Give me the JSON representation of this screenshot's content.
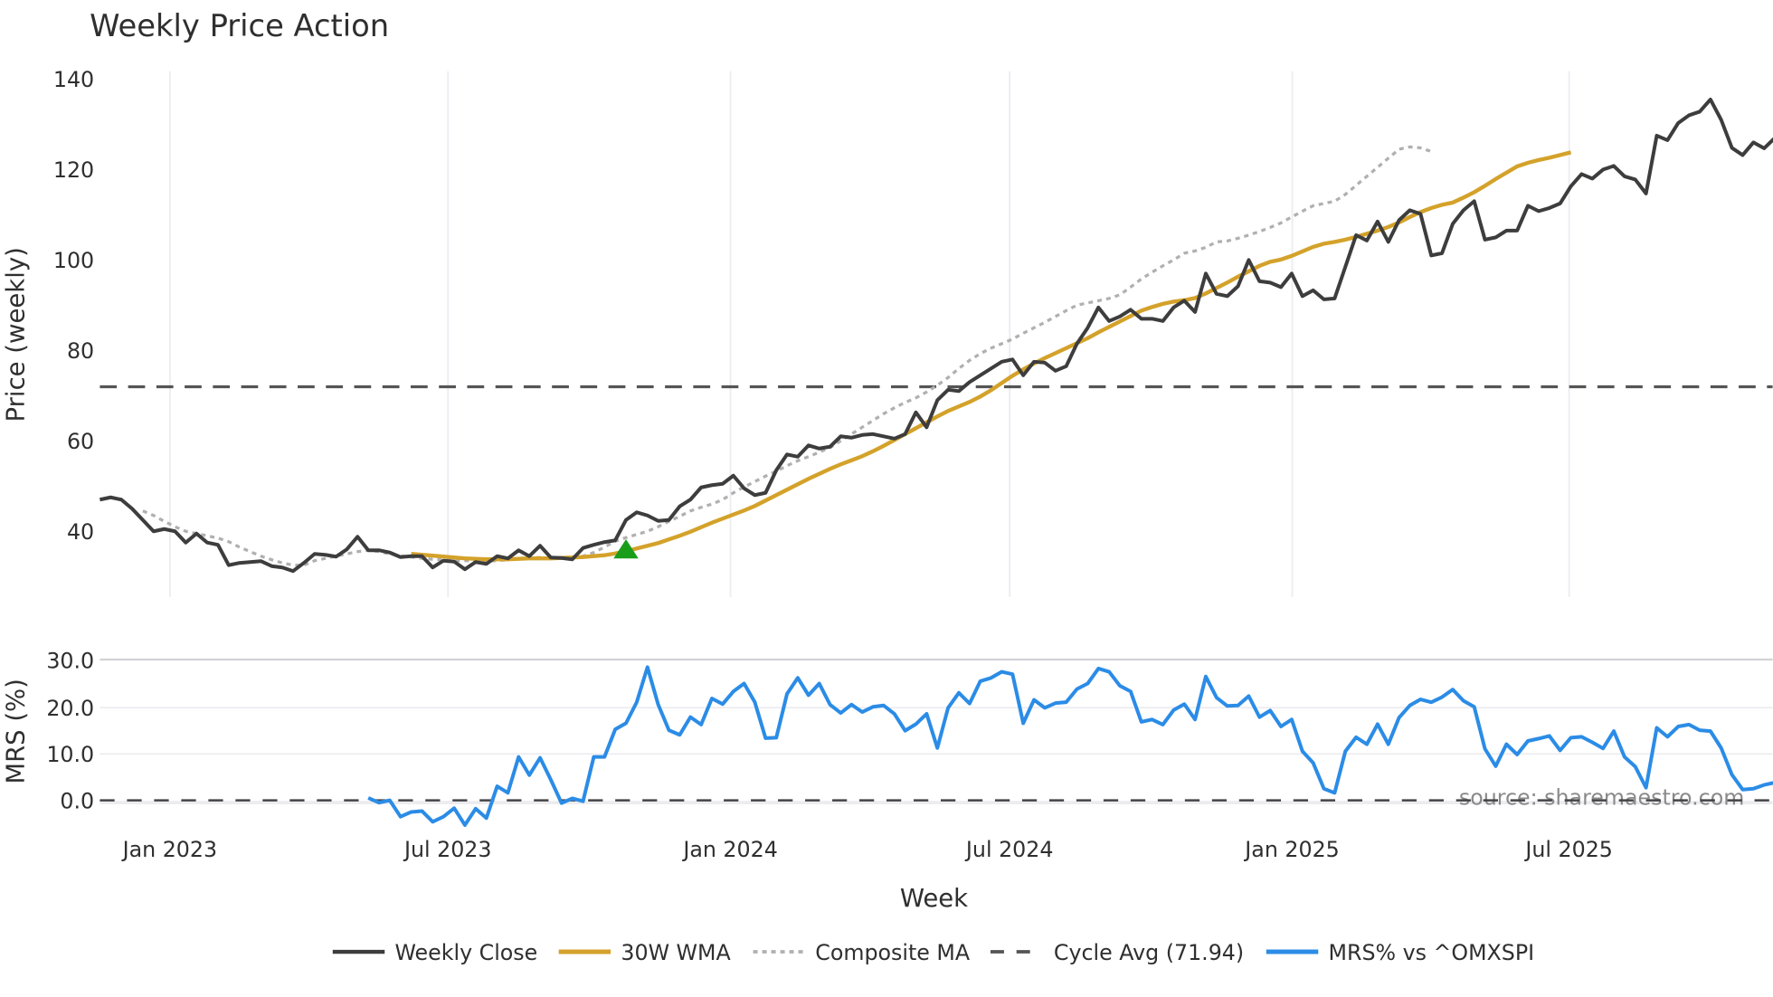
{
  "chart_data": [
    {
      "type": "line",
      "title": "Weekly Price Action",
      "xlabel": "Week",
      "ylabel": "Price (weekly)",
      "ylim": [
        25,
        142
      ],
      "yticks": [
        40,
        60,
        80,
        100,
        120,
        140
      ],
      "xticks": [
        "Jan 2023",
        "Jul 2023",
        "Jan 2024",
        "Jul 2024",
        "Jan 2025",
        "Jul 2025"
      ],
      "grid": "vertical",
      "reference_line": {
        "name": "Cycle Avg (71.94)",
        "value": 71.94,
        "style": "dashed",
        "color": "#555555"
      },
      "marker": {
        "name": "buy-signal",
        "shape": "triangle-up",
        "color": "#1a9e1a",
        "week_index": 49,
        "value": 36
      },
      "series": [
        {
          "name": "Weekly Close",
          "color": "#3d3d3d",
          "style": "solid",
          "start_index": 0,
          "values": [
            47,
            47.5,
            47,
            45,
            42.5,
            40,
            40.5,
            40,
            37.5,
            39.5,
            37.5,
            37,
            32.5,
            33,
            33.2,
            33.4,
            32.3,
            32,
            31.2,
            33,
            35,
            34.8,
            34.4,
            36,
            38.8,
            35.8,
            35.8,
            35.3,
            34.3,
            34.5,
            34.5,
            32,
            33.5,
            33.3,
            31.6,
            33.2,
            32.8,
            34.5,
            34,
            35.8,
            34.5,
            36.8,
            34.2,
            34.1,
            33.8,
            36.3,
            37,
            37.6,
            38,
            42.5,
            44.2,
            43.5,
            42.3,
            42.5,
            45.5,
            47,
            49.7,
            50.2,
            50.5,
            52.3,
            49.5,
            48,
            48.5,
            53.5,
            57,
            56.5,
            59,
            58.3,
            58.7,
            61,
            60.7,
            61.3,
            61.5,
            61,
            60.5,
            61.5,
            66.3,
            63,
            69,
            71.3,
            71,
            73,
            74.5,
            76,
            77.5,
            78,
            74.5,
            77.5,
            77.3,
            75.5,
            76.5,
            81.5,
            85,
            89.5,
            86.5,
            87.5,
            89,
            87,
            87,
            86.5,
            89.5,
            91,
            88.5,
            97,
            92.5,
            92,
            94.2,
            100,
            95.3,
            95,
            94,
            97,
            92,
            93.3,
            91.3,
            91.5,
            98.5,
            105.5,
            104.3,
            108.5,
            104,
            108.8,
            111,
            110.2,
            101,
            101.5,
            108,
            111,
            113,
            104.5,
            105,
            106.5,
            106.5,
            112,
            110.8,
            111.5,
            112.5,
            116.3,
            119,
            118,
            120,
            120.8,
            118.5,
            117.8,
            114.7,
            127.5,
            126.5,
            130.3,
            132,
            132.8,
            135.5,
            131,
            124.8,
            123.2,
            126,
            124.7,
            127
          ]
        },
        {
          "name": "30W WMA",
          "color": "#d4a22a",
          "style": "solid",
          "start_index": 29,
          "values": [
            35,
            34.8,
            34.6,
            34.4,
            34.2,
            34,
            33.9,
            33.8,
            33.8,
            33.8,
            33.9,
            34,
            34,
            34,
            34.1,
            34.2,
            34.3,
            34.5,
            34.7,
            35.1,
            35.6,
            36.2,
            36.8,
            37.4,
            38.2,
            39,
            39.9,
            40.9,
            41.9,
            42.8,
            43.7,
            44.6,
            45.6,
            46.8,
            48,
            49.2,
            50.4,
            51.6,
            52.7,
            53.8,
            54.8,
            55.7,
            56.6,
            57.7,
            58.9,
            60.2,
            61.5,
            62.8,
            64.1,
            65.4,
            66.6,
            67.6,
            68.6,
            69.8,
            71.2,
            72.8,
            74.4,
            75.8,
            77.1,
            78.3,
            79.4,
            80.5,
            81.6,
            82.7,
            84,
            85.2,
            86.4,
            87.6,
            88.8,
            89.6,
            90.3,
            90.8,
            91.1,
            91.6,
            92.6,
            93.8,
            95,
            96.3,
            97.5,
            98.7,
            99.6,
            100.1,
            100.9,
            101.9,
            102.9,
            103.6,
            104,
            104.5,
            105.1,
            105.8,
            106.5,
            107.3,
            108.3,
            109.5,
            110.6,
            111.5,
            112.2,
            112.7,
            113.8,
            115,
            116.4,
            117.9,
            119.3,
            120.7,
            121.5,
            122.1,
            122.6,
            123.2,
            123.8
          ]
        },
        {
          "name": "Composite MA",
          "color": "#b0b0b0",
          "style": "dotted",
          "start_index": 4,
          "values": [
            44.5,
            43.5,
            42.2,
            41,
            40,
            39.5,
            39,
            38.5,
            37.7,
            36.5,
            35.5,
            34.5,
            33.7,
            33,
            32.5,
            32.5,
            33.5,
            34,
            34.5,
            35,
            35.5,
            35.8,
            35.5,
            35,
            34.6,
            34.3,
            34,
            33.8,
            33.7,
            33.5,
            33.5,
            33.5,
            33.4,
            33.5,
            33.7,
            34,
            34.2,
            34.2,
            34.1,
            34.1,
            34.2,
            34.5,
            35.3,
            36.5,
            37.8,
            38.6,
            39.3,
            40,
            41,
            42.2,
            43.3,
            44.5,
            45.3,
            46,
            47,
            48.5,
            49.8,
            51,
            52.2,
            53.3,
            54.5,
            55.6,
            56.5,
            57.5,
            58.5,
            60,
            61.5,
            63,
            64.5,
            66,
            67.3,
            68.5,
            69.5,
            70.8,
            72.3,
            74,
            76,
            77.8,
            79.3,
            80.5,
            81.5,
            82.5,
            83.8,
            85,
            86.2,
            87.5,
            88.8,
            90,
            90.5,
            91,
            91.5,
            92.3,
            94,
            95.8,
            97.3,
            98.7,
            100,
            101.5,
            102,
            102.8,
            104,
            104.2,
            104.8,
            105.5,
            106.3,
            107.2,
            108.2,
            109.5,
            110.8,
            112,
            112.5,
            113,
            114.5,
            116.5,
            118.5,
            120.5,
            122.5,
            124.5,
            125,
            124.8,
            124
          ]
        }
      ]
    },
    {
      "type": "line",
      "title": "",
      "xlabel": "Week",
      "ylabel": "MRS (%)",
      "ylim": [
        -6,
        31
      ],
      "yticks": [
        0.0,
        10.0,
        20.0,
        30.0
      ],
      "ytick_labels": [
        "0.0",
        "10.0",
        "20.0",
        "30.0"
      ],
      "grid": "horizontal",
      "reference_line": {
        "value": 0,
        "style": "dashed",
        "color": "#444444"
      },
      "series": [
        {
          "name": "MRS% vs ^OMXSPI",
          "color": "#2b8ce6",
          "style": "solid",
          "start_index": 25,
          "values": [
            0.5,
            -0.5,
            0,
            -3.5,
            -2.5,
            -2.3,
            -4.6,
            -3.5,
            -1.7,
            -5.3,
            -1.8,
            -3.8,
            3,
            1.6,
            9.3,
            5.4,
            9.1,
            4.4,
            -0.6,
            0.4,
            -0.2,
            9.3,
            9.3,
            15.2,
            16.5,
            21,
            28.5,
            20.5,
            15,
            14,
            17.8,
            16.2,
            21.8,
            20.6,
            23.3,
            25,
            21,
            13.3,
            13.4,
            22.8,
            26.2,
            22.5,
            25,
            20.5,
            18.7,
            20.5,
            18.9,
            20,
            20.3,
            18.5,
            14.9,
            16.3,
            18.5,
            11.2,
            19.8,
            23,
            20.7,
            25.5,
            26.2,
            27.5,
            27,
            16.5,
            21.5,
            19.8,
            20.8,
            21,
            23.8,
            25,
            28.2,
            27.5,
            24.5,
            23.3,
            16.8,
            17.3,
            16.2,
            19.3,
            20.6,
            17.3,
            26.5,
            22,
            20.2,
            20.3,
            22.3,
            17.8,
            19.2,
            15.8,
            17.3,
            10.5,
            8,
            2.5,
            1.6,
            10.5,
            13.5,
            12,
            16.3,
            12,
            17.7,
            20.3,
            21.6,
            21,
            22.1,
            23.7,
            21.3,
            20,
            11,
            7.3,
            12,
            9.8,
            12.7,
            13.2,
            13.8,
            10.7,
            13.4,
            13.6,
            12.4,
            11.1,
            14.8,
            9.3,
            7.2,
            2.7,
            15.5,
            13.6,
            15.8,
            16.2,
            15,
            14.8,
            11.2,
            5.5,
            2.3,
            2.5,
            3.3,
            3.8
          ]
        }
      ]
    }
  ],
  "title": "Weekly Price Action",
  "axes": {
    "price_ylabel": "Price (weekly)",
    "mrs_ylabel": "MRS (%)",
    "xlabel": "Week",
    "price_yticks": [
      "140",
      "120",
      "100",
      "80",
      "60",
      "40"
    ],
    "mrs_yticks": [
      "30.0",
      "20.0",
      "10.0",
      "0.0"
    ],
    "xticks": [
      "Jan 2023",
      "Jul 2023",
      "Jan 2024",
      "Jul 2024",
      "Jan 2025",
      "Jul 2025"
    ]
  },
  "legend": {
    "items": [
      {
        "label": "Weekly Close",
        "color": "#3d3d3d",
        "style": "solid"
      },
      {
        "label": "30W WMA",
        "color": "#d4a22a",
        "style": "solid"
      },
      {
        "label": "Composite MA",
        "color": "#b0b0b0",
        "style": "dotted"
      },
      {
        "label": "Cycle Avg (71.94)",
        "color": "#555555",
        "style": "dashed"
      },
      {
        "label": "MRS% vs ^OMXSPI",
        "color": "#2b8ce6",
        "style": "solid"
      }
    ]
  },
  "source": "source: sharemaestro.com"
}
